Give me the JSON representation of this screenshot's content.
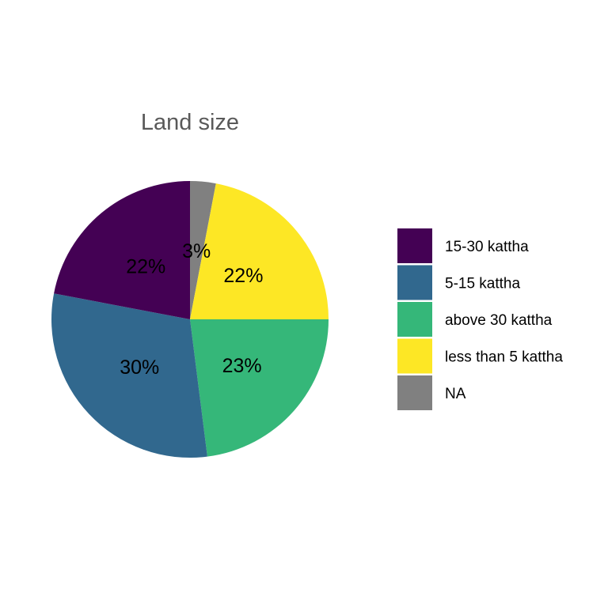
{
  "chart_data": {
    "type": "pie",
    "title": "Land size",
    "slices": [
      {
        "label": "15-30 kattha",
        "value": 22,
        "display": "22%",
        "color": "#440154"
      },
      {
        "label": "5-15 kattha",
        "value": 30,
        "display": "30%",
        "color": "#31688E"
      },
      {
        "label": "above 30 kattha",
        "value": 23,
        "display": "23%",
        "color": "#35B779"
      },
      {
        "label": "less than 5 kattha",
        "value": 22,
        "display": "22%",
        "color": "#FDE725"
      },
      {
        "label": "NA",
        "value": 3,
        "display": "3%",
        "color": "#808080"
      }
    ],
    "draw_order": [
      "NA",
      "less than 5 kattha",
      "above 30 kattha",
      "5-15 kattha",
      "15-30 kattha"
    ],
    "start": "top",
    "direction": "clockwise",
    "legend_position": "right"
  }
}
